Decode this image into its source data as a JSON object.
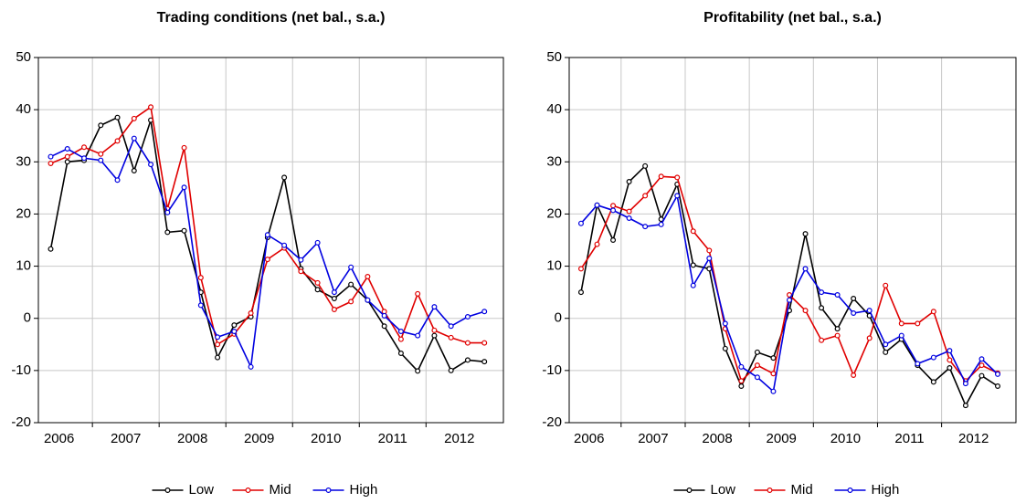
{
  "chart_data": [
    {
      "type": "line",
      "title": "Trading conditions (net bal., s.a.)",
      "x": [
        2006.375,
        2006.625,
        2006.875,
        2007.125,
        2007.375,
        2007.625,
        2007.875,
        2008.125,
        2008.375,
        2008.625,
        2008.875,
        2009.125,
        2009.375,
        2009.625,
        2009.875,
        2010.125,
        2010.375,
        2010.625,
        2010.875,
        2011.125,
        2011.375,
        2011.625,
        2011.875,
        2012.125,
        2012.375,
        2012.625,
        2012.875
      ],
      "xlim": [
        2006.19,
        2013.16
      ],
      "xticks": [
        {
          "value": 2006.5,
          "label": "2006"
        },
        {
          "value": 2007.5,
          "label": "2007"
        },
        {
          "value": 2008.5,
          "label": "2008"
        },
        {
          "value": 2009.5,
          "label": "2009"
        },
        {
          "value": 2010.5,
          "label": "2010"
        },
        {
          "value": 2011.5,
          "label": "2011"
        },
        {
          "value": 2012.5,
          "label": "2012"
        }
      ],
      "xgrid": [
        2007,
        2008,
        2009,
        2010,
        2011,
        2012
      ],
      "ylim": [
        -20,
        50
      ],
      "yticks": [
        -20,
        -10,
        0,
        10,
        20,
        30,
        40,
        50
      ],
      "grid": true,
      "series": [
        {
          "name": "Low",
          "color": "#000000",
          "values": [
            13.3,
            30,
            30.3,
            37,
            38.5,
            28.3,
            38,
            16.5,
            16.8,
            5,
            -7.5,
            -1.3,
            0.3,
            15.5,
            27,
            9.5,
            5.5,
            3.8,
            6.5,
            3.5,
            -1.5,
            -6.7,
            -10.1,
            -3.3,
            -10,
            -8,
            -8.3
          ]
        },
        {
          "name": "Mid",
          "color": "#e00000",
          "values": [
            29.7,
            31,
            32.8,
            31.5,
            34,
            38.3,
            40.5,
            21,
            32.7,
            7.8,
            -5,
            -3,
            1,
            11.3,
            13.5,
            9,
            6.8,
            1.7,
            3.2,
            8,
            1.3,
            -4,
            4.7,
            -2.3,
            -3.7,
            -4.7,
            -4.7
          ]
        },
        {
          "name": "High",
          "color": "#0000e0",
          "values": [
            31,
            32.5,
            30.7,
            30.3,
            26.5,
            34.5,
            29.5,
            20.3,
            25.1,
            2.5,
            -3.6,
            -2.5,
            -9.3,
            16,
            14,
            11.2,
            14.5,
            5,
            9.8,
            3.5,
            0.5,
            -2.5,
            -3.3,
            2.2,
            -1.5,
            0.3,
            1.3
          ]
        }
      ]
    },
    {
      "type": "line",
      "title": "Profitability (net bal., s.a.)",
      "x": [
        2006.375,
        2006.625,
        2006.875,
        2007.125,
        2007.375,
        2007.625,
        2007.875,
        2008.125,
        2008.375,
        2008.625,
        2008.875,
        2009.125,
        2009.375,
        2009.625,
        2009.875,
        2010.125,
        2010.375,
        2010.625,
        2010.875,
        2011.125,
        2011.375,
        2011.625,
        2011.875,
        2012.125,
        2012.375,
        2012.625,
        2012.875
      ],
      "xlim": [
        2006.19,
        2013.16
      ],
      "xticks": [
        {
          "value": 2006.5,
          "label": "2006"
        },
        {
          "value": 2007.5,
          "label": "2007"
        },
        {
          "value": 2008.5,
          "label": "2008"
        },
        {
          "value": 2009.5,
          "label": "2009"
        },
        {
          "value": 2010.5,
          "label": "2010"
        },
        {
          "value": 2011.5,
          "label": "2011"
        },
        {
          "value": 2012.5,
          "label": "2012"
        }
      ],
      "xgrid": [
        2007,
        2008,
        2009,
        2010,
        2011,
        2012
      ],
      "ylim": [
        -20,
        50
      ],
      "yticks": [
        -20,
        -10,
        0,
        10,
        20,
        30,
        40,
        50
      ],
      "grid": true,
      "series": [
        {
          "name": "Low",
          "color": "#000000",
          "values": [
            5,
            21.7,
            15,
            26.2,
            29.2,
            19,
            25.7,
            10.2,
            9.5,
            -5.8,
            -13,
            -6.5,
            -7.6,
            1.5,
            16.2,
            2,
            -2,
            3.8,
            0.5,
            -6.5,
            -4,
            -9,
            -12.2,
            -9.5,
            -16.7,
            -11,
            -13
          ]
        },
        {
          "name": "Mid",
          "color": "#e00000",
          "values": [
            9.5,
            14.2,
            21.6,
            20.5,
            23.5,
            27.2,
            27,
            16.7,
            13,
            -2,
            -12,
            -9,
            -10.6,
            4.5,
            1.5,
            -4.2,
            -3.3,
            -10.9,
            -3.8,
            6.3,
            -1,
            -1,
            1.3,
            -8,
            -12,
            -9,
            -10.5
          ]
        },
        {
          "name": "High",
          "color": "#0000e0",
          "values": [
            18.2,
            21.7,
            20.7,
            19.2,
            17.6,
            18,
            23.5,
            6.3,
            11.5,
            -1,
            -9.3,
            -11.3,
            -14,
            3.5,
            9.5,
            5,
            4.5,
            1,
            1.5,
            -5,
            -3.3,
            -8.7,
            -7.5,
            -6.2,
            -12.5,
            -7.8,
            -10.7
          ]
        }
      ]
    }
  ]
}
